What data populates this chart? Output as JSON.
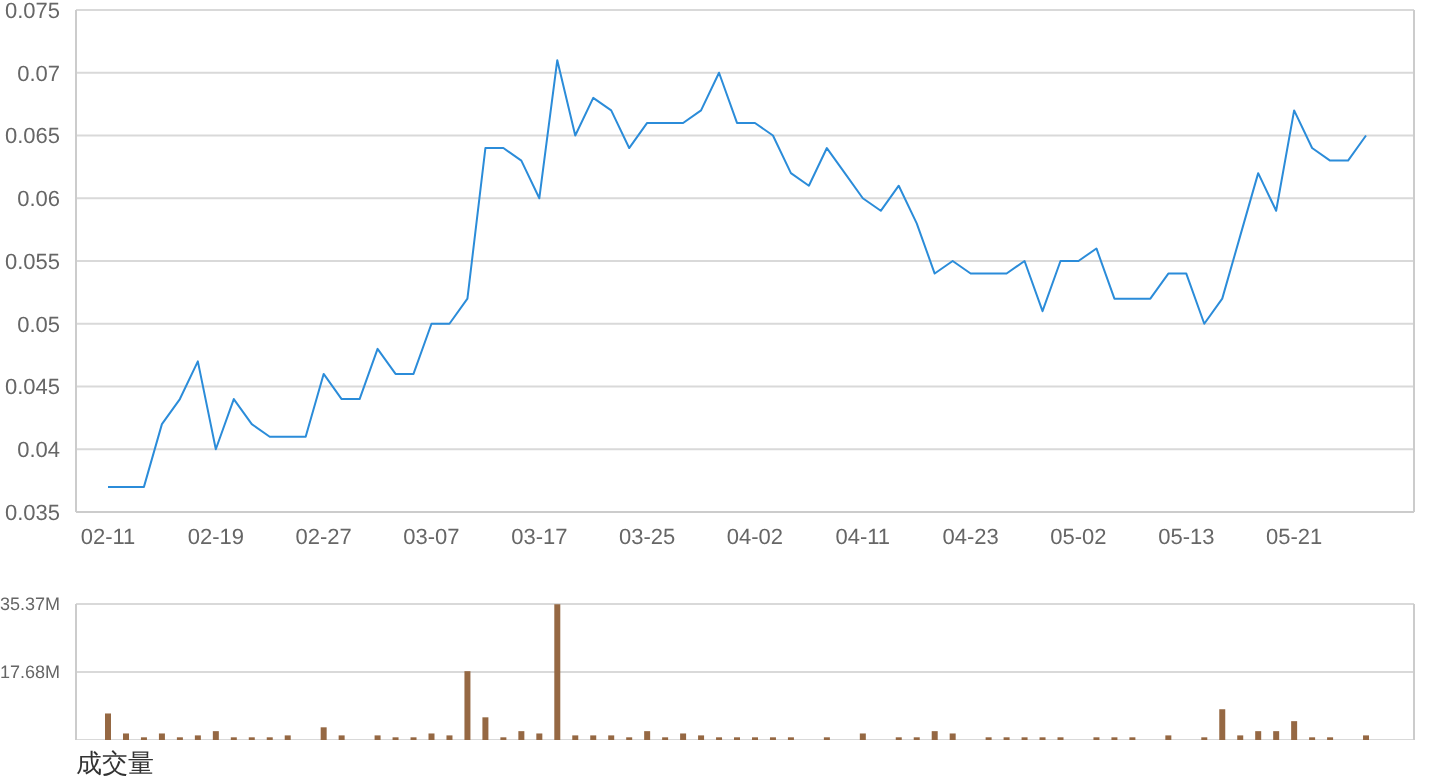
{
  "chart_data": [
    {
      "type": "line",
      "categories": [
        "02-11",
        null,
        null,
        null,
        null,
        null,
        "02-19",
        null,
        null,
        null,
        null,
        null,
        "02-27",
        null,
        null,
        null,
        null,
        null,
        "03-07",
        null,
        null,
        null,
        null,
        null,
        "03-17",
        null,
        null,
        null,
        null,
        null,
        "03-25",
        null,
        null,
        null,
        null,
        null,
        "04-02",
        null,
        null,
        null,
        null,
        null,
        "04-11",
        null,
        null,
        null,
        null,
        null,
        "04-23",
        null,
        null,
        null,
        null,
        null,
        "05-02",
        null,
        null,
        null,
        null,
        null,
        "05-13",
        null,
        null,
        null,
        null,
        null,
        "05-21",
        null,
        null,
        null,
        null
      ],
      "values": [
        0.037,
        0.037,
        0.037,
        0.042,
        0.044,
        0.047,
        0.04,
        0.044,
        0.042,
        0.041,
        0.041,
        0.041,
        0.046,
        0.044,
        0.044,
        0.048,
        0.046,
        0.046,
        0.05,
        0.05,
        0.052,
        0.064,
        0.064,
        0.063,
        0.06,
        0.071,
        0.065,
        0.068,
        0.067,
        0.064,
        0.066,
        0.066,
        0.066,
        0.067,
        0.07,
        0.066,
        0.066,
        0.065,
        0.062,
        0.061,
        0.064,
        0.062,
        0.06,
        0.059,
        0.061,
        0.058,
        0.054,
        0.055,
        0.054,
        0.054,
        0.054,
        0.055,
        0.051,
        0.055,
        0.055,
        0.056,
        0.052,
        0.052,
        0.052,
        0.054,
        0.054,
        0.05,
        0.052,
        0.057,
        0.062,
        0.059,
        0.067,
        0.064,
        0.063,
        0.063,
        0.065
      ],
      "color": "#2b8cd9",
      "ylim": [
        0.035,
        0.075
      ],
      "yticks": [
        0.035,
        0.04,
        0.045,
        0.05,
        0.055,
        0.06,
        0.065,
        0.07,
        0.075
      ],
      "grid": "y",
      "marker": "none",
      "line_style": "solid"
    },
    {
      "type": "bar",
      "xlabel": "成交量",
      "categories": [
        null,
        null,
        null,
        null,
        null,
        null,
        null,
        null,
        null,
        null,
        null,
        null,
        null,
        null,
        null,
        null,
        null,
        null,
        null,
        null,
        null,
        null,
        null,
        null,
        null,
        null,
        null,
        null,
        null,
        null,
        null,
        null,
        null,
        null,
        null,
        null,
        null,
        null,
        null,
        null,
        null,
        null,
        null,
        null,
        null,
        null,
        null,
        null,
        null,
        null,
        null,
        null,
        null,
        null,
        null,
        null,
        null,
        null,
        null,
        null,
        null,
        null,
        null,
        null,
        null,
        null,
        null,
        null,
        null,
        null,
        null
      ],
      "values": [
        6.9,
        1.7,
        0.7,
        1.7,
        0.7,
        1.2,
        2.3,
        0.7,
        0.7,
        0.7,
        1.2,
        0,
        3.3,
        1.2,
        0,
        1.2,
        0.7,
        0.7,
        1.7,
        1.2,
        17.9,
        5.9,
        0.7,
        2.3,
        1.7,
        35.3,
        1.2,
        1.2,
        1.2,
        0.7,
        2.3,
        0.7,
        1.7,
        1.2,
        0.7,
        0.7,
        0.7,
        0.7,
        0.7,
        0,
        0.7,
        0,
        1.7,
        0,
        0.7,
        0.7,
        2.3,
        1.7,
        0,
        0.7,
        0.7,
        0.7,
        0.7,
        0.7,
        0,
        0.7,
        0.7,
        0.7,
        0,
        1.2,
        0,
        0.7,
        8.0,
        1.2,
        2.3,
        2.3,
        4.9,
        0.7,
        0.7,
        0,
        1.2
      ],
      "color": "#956843",
      "ylim": [
        0,
        35.37
      ],
      "yticks": [
        {
          "value": 0,
          "label": null
        },
        {
          "value": 17.68,
          "label": "17.68M"
        },
        {
          "value": 35.37,
          "label": "35.37M"
        }
      ],
      "grid": "y",
      "tick_labels": "y"
    }
  ]
}
